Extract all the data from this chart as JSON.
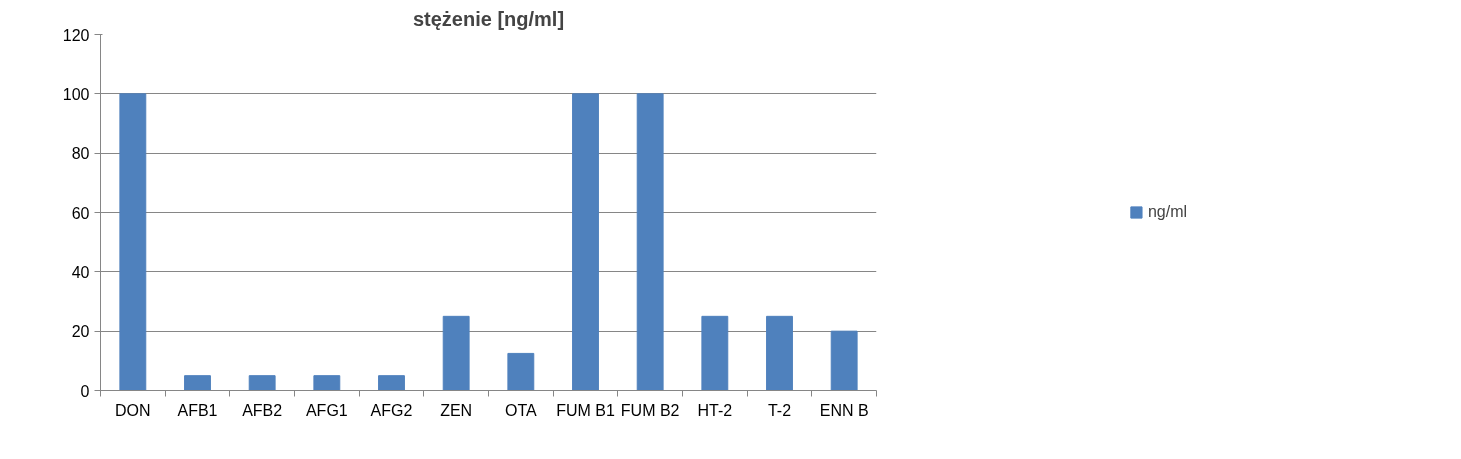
{
  "chart_data": {
    "type": "bar",
    "title": "stężenie [ng/ml]",
    "categories": [
      "DON",
      "AFB1",
      "AFB2",
      "AFG1",
      "AFG2",
      "ZEN",
      "OTA",
      "FUM B1",
      "FUM B2",
      "HT-2",
      "T-2",
      "ENN B"
    ],
    "series": [
      {
        "name": "ng/ml",
        "color": "#4f81bd",
        "values": [
          100,
          5,
          5,
          5,
          5,
          25,
          12.5,
          100,
          100,
          25,
          25,
          20
        ]
      }
    ],
    "ylim": [
      0,
      120
    ],
    "yticks": [
      0,
      20,
      40,
      60,
      80,
      100,
      120
    ],
    "grid": "y",
    "legend": "right"
  }
}
